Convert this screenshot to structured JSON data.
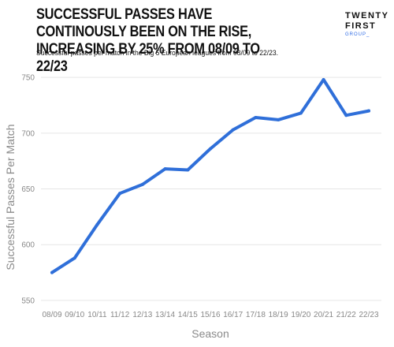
{
  "header": {
    "title": "SUCCESSFUL PASSES HAVE CONTINOUSLY BEEN ON THE RISE, INCREASING BY 25% FROM 08/09 TO 22/23",
    "subtitle": "Successful passes per match in the Big 5 European leagues from 08/09 to 22/23.",
    "logo_line1": "TWENTY",
    "logo_line2": "FIRST",
    "logo_line3": "GROUP_"
  },
  "chart_data": {
    "type": "line",
    "title": "SUCCESSFUL PASSES HAVE CONTINOUSLY BEEN ON THE RISE, INCREASING BY 25% FROM 08/09 TO 22/23",
    "subtitle": "Successful passes per match in the Big 5 European leagues from 08/09 to 22/23.",
    "xlabel": "Season",
    "ylabel": "Successful Passes Per Match",
    "categories": [
      "08/09",
      "09/10",
      "10/11",
      "11/12",
      "12/13",
      "13/14",
      "14/15",
      "15/16",
      "16/17",
      "17/18",
      "18/19",
      "19/20",
      "20/21",
      "21/22",
      "22/23"
    ],
    "series": [
      {
        "values": [
          575,
          588,
          618,
          646,
          654,
          668,
          667,
          686,
          703,
          714,
          712,
          718,
          748,
          716,
          720
        ]
      }
    ],
    "yticks": [
      550,
      600,
      650,
      700,
      750
    ],
    "ylim": [
      545,
      760
    ],
    "grid": "horizontal",
    "line_color": "#2f6fd9"
  }
}
